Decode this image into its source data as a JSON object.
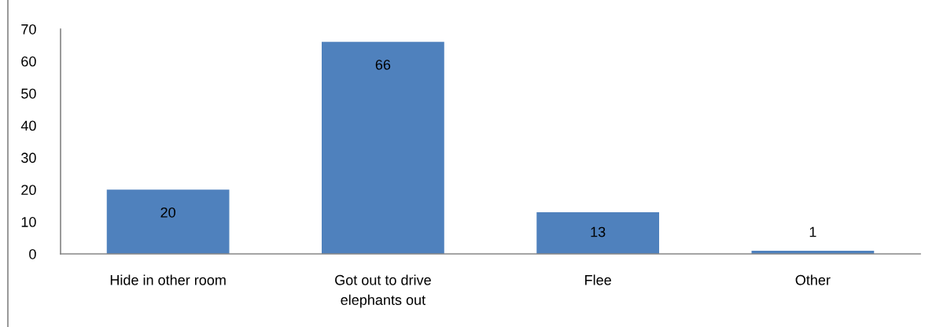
{
  "chart_data": {
    "type": "bar",
    "categories": [
      "Hide in other room",
      "Got out to drive elephants out",
      "Flee",
      "Other"
    ],
    "values": [
      20,
      66,
      13,
      1
    ],
    "color": "#4f81bd",
    "ylim": [
      0,
      70
    ],
    "yticks": [
      0,
      10,
      20,
      30,
      40,
      50,
      60,
      70
    ],
    "grid": false,
    "data_labels": true
  }
}
